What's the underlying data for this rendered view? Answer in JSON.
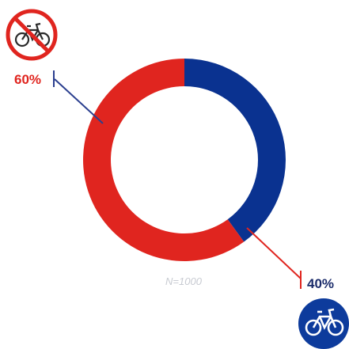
{
  "chart_data": {
    "type": "pie",
    "variant": "donut",
    "slices": [
      {
        "value": 40,
        "label": "40%",
        "color": "#0a3290",
        "icon": "bicycle-allowed-icon"
      },
      {
        "value": 60,
        "label": "60%",
        "color": "#e0251f",
        "icon": "no-bicycle-icon"
      }
    ],
    "sample_label": "N=1000",
    "sample_label_color": "#c8cbd2",
    "leader_colors": {
      "red_slice": "#2b3f8f",
      "blue_slice": "#e0251f"
    }
  }
}
